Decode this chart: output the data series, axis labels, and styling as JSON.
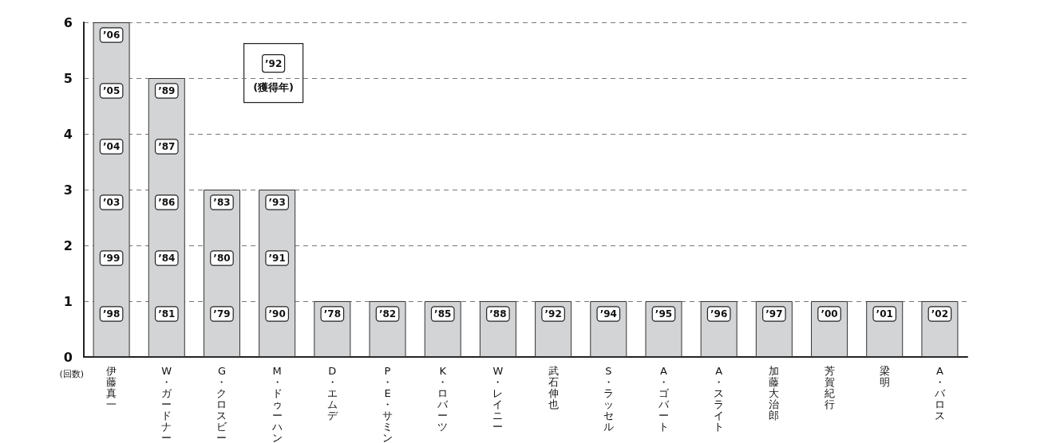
{
  "chart_data": {
    "type": "bar",
    "ylabel": "(回数)",
    "categories": [
      "伊藤真一",
      "W・ガードナー",
      "G・クロスビー",
      "M・ドゥーハン",
      "D・エムデ",
      "P・E・サミン",
      "K・ロバーツ",
      "W・レイニー",
      "武石伸也",
      "S・ラッセル",
      "A・ゴバート",
      "A・スライト",
      "加藤大治郎",
      "芳賀紀行",
      "梁明",
      "A・バロス"
    ],
    "values": [
      6,
      5,
      3,
      3,
      1,
      1,
      1,
      1,
      1,
      1,
      1,
      1,
      1,
      1,
      1,
      1
    ],
    "color": "#d3d4d6",
    "ylim": [
      0,
      6
    ],
    "yticks": [
      0,
      1,
      2,
      3,
      4,
      5,
      6
    ],
    "grid": "y",
    "annotations": [
      "’98",
      "’99",
      "’03",
      "’04",
      "’05",
      "’06",
      "’81",
      "’84",
      "’86",
      "’87",
      "’89",
      "’79",
      "’80",
      "’83",
      "’90",
      "’91",
      "’93",
      "’78",
      "’82",
      "’85",
      "’88",
      "’92",
      "’94",
      "’95",
      "’96",
      "’97",
      "’00",
      "’01",
      "’02",
      "’92",
      "(獲得年)"
    ]
  }
}
